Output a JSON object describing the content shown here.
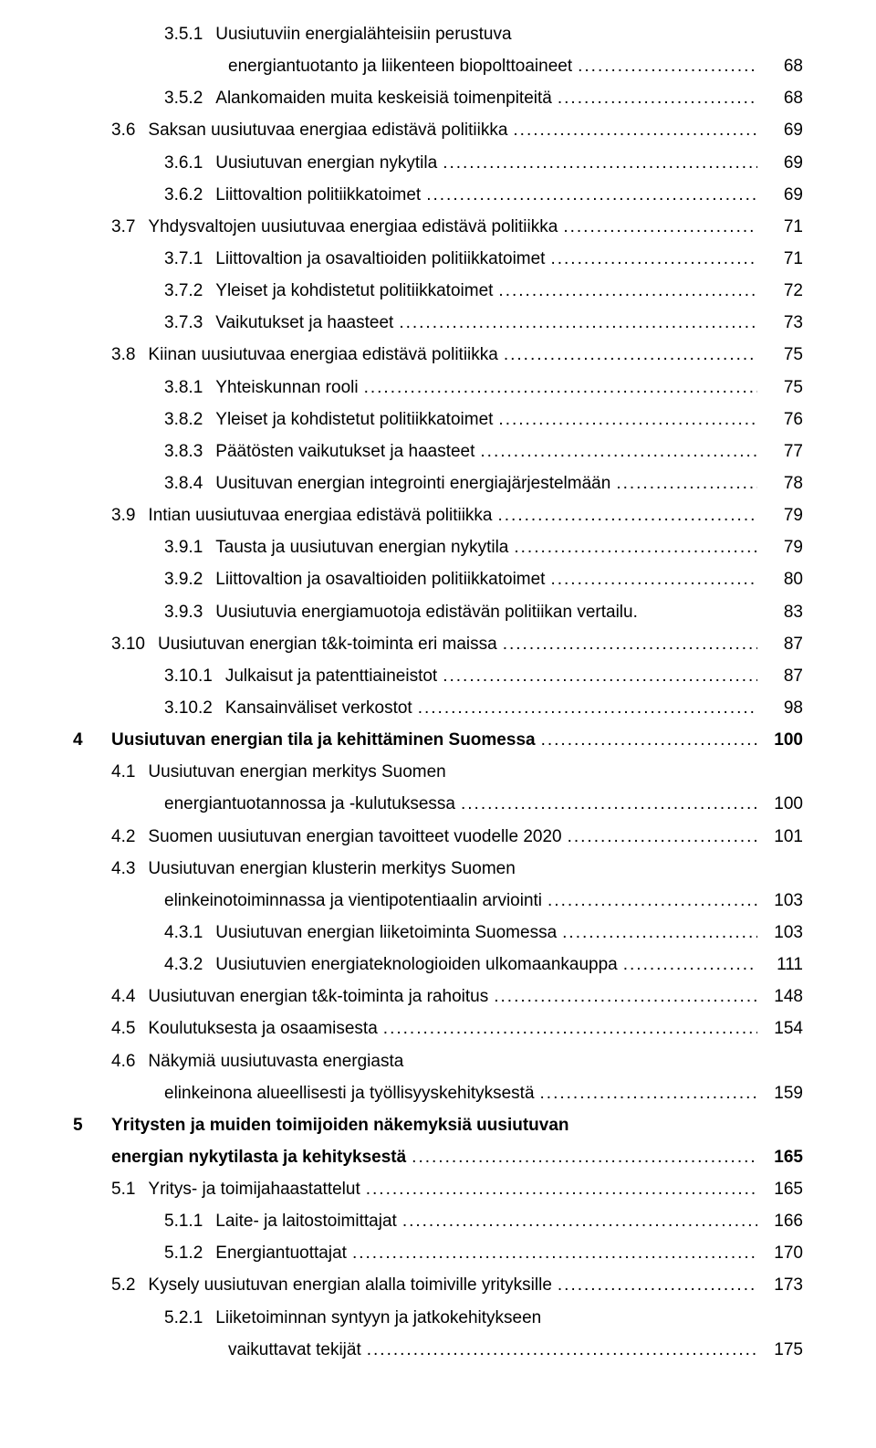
{
  "entries": [
    {
      "indent": 2,
      "num": "3.5.1",
      "title": "Uusiutuviin energialähteisiin perustuva",
      "page": "",
      "wrap": true
    },
    {
      "indent": 2,
      "num": "",
      "title": "energiantuotanto ja liikenteen biopolttoaineet",
      "page": "68",
      "continuation": true
    },
    {
      "indent": 2,
      "num": "3.5.2",
      "title": "Alankomaiden muita keskeisiä toimenpiteitä",
      "page": "68"
    },
    {
      "indent": 1,
      "num": "3.6",
      "title": "Saksan uusiutuvaa energiaa edistävä politiikka",
      "page": "69"
    },
    {
      "indent": 2,
      "num": "3.6.1",
      "title": "Uusiutuvan energian nykytila",
      "page": "69"
    },
    {
      "indent": 2,
      "num": "3.6.2",
      "title": "Liittovaltion politiikkatoimet",
      "page": "69"
    },
    {
      "indent": 1,
      "num": "3.7",
      "title": "Yhdysvaltojen uusiutuvaa energiaa edistävä politiikka",
      "page": "71"
    },
    {
      "indent": 2,
      "num": "3.7.1",
      "title": "Liittovaltion ja osavaltioiden politiikkatoimet",
      "page": "71"
    },
    {
      "indent": 2,
      "num": "3.7.2",
      "title": "Yleiset ja kohdistetut politiikkatoimet",
      "page": "72"
    },
    {
      "indent": 2,
      "num": "3.7.3",
      "title": "Vaikutukset ja haasteet",
      "page": "73"
    },
    {
      "indent": 1,
      "num": "3.8",
      "title": "Kiinan uusiutuvaa energiaa edistävä politiikka",
      "page": "75"
    },
    {
      "indent": 2,
      "num": "3.8.1",
      "title": "Yhteiskunnan rooli",
      "page": "75"
    },
    {
      "indent": 2,
      "num": "3.8.2",
      "title": "Yleiset ja kohdistetut politiikkatoimet",
      "page": "76"
    },
    {
      "indent": 2,
      "num": "3.8.3",
      "title": "Päätösten vaikutukset ja haasteet",
      "page": "77"
    },
    {
      "indent": 2,
      "num": "3.8.4",
      "title": "Uusituvan energian integrointi energiajärjestelmään",
      "page": "78"
    },
    {
      "indent": 1,
      "num": "3.9",
      "title": "Intian uusiutuvaa energiaa edistävä politiikka",
      "page": "79"
    },
    {
      "indent": 2,
      "num": "3.9.1",
      "title": "Tausta ja uusiutuvan energian nykytila",
      "page": "79"
    },
    {
      "indent": 2,
      "num": "3.9.2",
      "title": "Liittovaltion ja osavaltioiden politiikkatoimet",
      "page": "80"
    },
    {
      "indent": 2,
      "num": "3.9.3",
      "title": "Uusiutuvia energiamuotoja edistävän politiikan vertailu",
      "page": "83",
      "nodots": true
    },
    {
      "indent": 1,
      "num": "3.10",
      "title": "Uusiutuvan energian t&k-toiminta eri maissa",
      "page": "87"
    },
    {
      "indent": 2,
      "num": "3.10.1",
      "title": "Julkaisut ja patenttiaineistot",
      "page": "87"
    },
    {
      "indent": 2,
      "num": "3.10.2",
      "title": "Kansainväliset verkostot",
      "page": "98"
    },
    {
      "indent": 0,
      "num": "4",
      "title": "Uusiutuvan energian tila ja kehittäminen Suomessa",
      "page": "100",
      "bold": true
    },
    {
      "indent": 1,
      "num": "4.1",
      "title": "Uusiutuvan energian merkitys Suomen",
      "page": "",
      "wrap": true
    },
    {
      "indent": 1,
      "num": "",
      "title": "energiantuotannossa ja -kulutuksessa",
      "page": "100",
      "continuation": true,
      "contlevel": 1
    },
    {
      "indent": 1,
      "num": "4.2",
      "title": "Suomen uusiutuvan energian tavoitteet vuodelle 2020",
      "page": "101"
    },
    {
      "indent": 1,
      "num": "4.3",
      "title": "Uusiutuvan energian klusterin merkitys Suomen",
      "page": "",
      "wrap": true
    },
    {
      "indent": 1,
      "num": "",
      "title": "elinkeinotoiminnassa ja vientipotentiaalin arviointi",
      "page": "103",
      "continuation": true,
      "contlevel": 1
    },
    {
      "indent": 2,
      "num": "4.3.1",
      "title": "Uusiutuvan energian liiketoiminta Suomessa",
      "page": "103"
    },
    {
      "indent": 2,
      "num": "4.3.2",
      "title": "Uusiutuvien energiateknologioiden ulkomaankauppa",
      "page": "111"
    },
    {
      "indent": 1,
      "num": "4.4",
      "title": "Uusiutuvan energian t&k-toiminta ja rahoitus",
      "page": "148"
    },
    {
      "indent": 1,
      "num": "4.5",
      "title": "Koulutuksesta ja osaamisesta",
      "page": "154"
    },
    {
      "indent": 1,
      "num": "4.6",
      "title": "Näkymiä uusiutuvasta energiasta",
      "page": "",
      "wrap": true
    },
    {
      "indent": 1,
      "num": "",
      "title": "elinkeinona alueellisesti ja työllisyyskehityksestä",
      "page": "159",
      "continuation": true,
      "contlevel": 1
    },
    {
      "indent": 0,
      "num": "5",
      "title": "Yritysten ja muiden toimijoiden näkemyksiä uusiutuvan",
      "page": "",
      "bold": true,
      "wrap": true
    },
    {
      "indent": 0,
      "num": "",
      "title": "energian nykytilasta ja kehityksestä",
      "page": "165",
      "bold": true,
      "continuation": true,
      "contlevel": 0
    },
    {
      "indent": 1,
      "num": "5.1",
      "title": "Yritys- ja toimijahaastattelut",
      "page": "165"
    },
    {
      "indent": 2,
      "num": "5.1.1",
      "title": "Laite- ja laitostoimittajat",
      "page": "166"
    },
    {
      "indent": 2,
      "num": "5.1.2",
      "title": "Energiantuottajat",
      "page": "170"
    },
    {
      "indent": 1,
      "num": "5.2",
      "title": "Kysely uusiutuvan energian alalla toimiville yrityksille",
      "page": "173"
    },
    {
      "indent": 2,
      "num": "5.2.1",
      "title": "Liiketoiminnan syntyyn ja jatkokehitykseen",
      "page": "",
      "wrap": true
    },
    {
      "indent": 2,
      "num": "",
      "title": "vaikuttavat tekijät",
      "page": "175",
      "continuation": true
    }
  ]
}
